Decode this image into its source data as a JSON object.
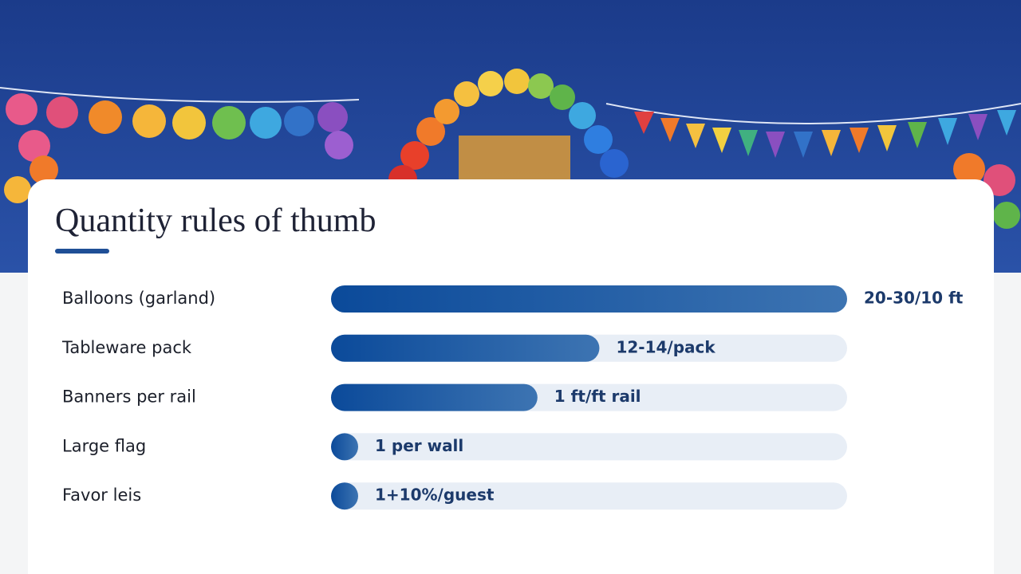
{
  "chart_data": {
    "type": "bar",
    "orientation": "horizontal",
    "title": "Quantity rules of thumb",
    "categories": [
      "Balloons (garland)",
      "Tableware pack",
      "Banners per rail",
      "Large flag",
      "Favor leis"
    ],
    "values": [
      100,
      52,
      40,
      5,
      5
    ],
    "value_labels": [
      "20-30/10 ft",
      "12-14/pack",
      "1 ft/ft rail",
      "1 per wall",
      "1+10%/guest"
    ],
    "xlim": [
      0,
      100
    ],
    "color": "#0b4a9a",
    "track_color": "#e8eef6"
  }
}
